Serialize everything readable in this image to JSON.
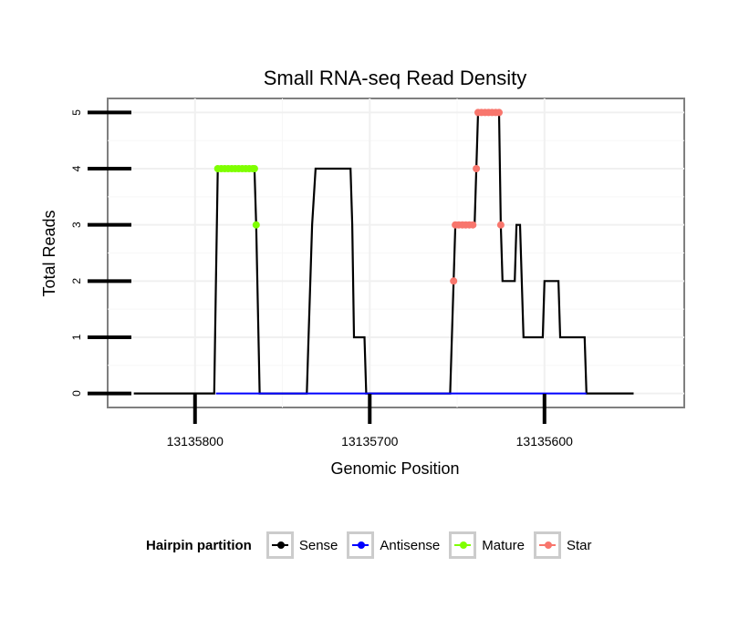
{
  "chart_data": {
    "type": "line",
    "title": "Small RNA-seq Read Density",
    "xlabel": "Genomic Position",
    "ylabel": "Total Reads",
    "xlim_reversed": [
      13135850,
      13135520
    ],
    "ylim": [
      -0.25,
      5.25
    ],
    "x_ticks": [
      13135800,
      13135700,
      13135600
    ],
    "x_tick_labels": [
      "13135800",
      "13135700",
      "13135600"
    ],
    "y_ticks": [
      0,
      1,
      2,
      3,
      4,
      5
    ],
    "y_tick_labels": [
      "0",
      "1",
      "2",
      "3",
      "4",
      "5"
    ],
    "grid": true,
    "legend": {
      "title": "Hairpin partition",
      "placement": "bottom",
      "entries": [
        {
          "name": "Sense",
          "color": "#000000"
        },
        {
          "name": "Antisense",
          "color": "#0000ff"
        },
        {
          "name": "Mature",
          "color": "#7fff00"
        },
        {
          "name": "Star",
          "color": "#f8766d"
        }
      ]
    },
    "series": [
      {
        "name": "Sense",
        "color": "#000000",
        "step": true,
        "points": [
          [
            13135835,
            0
          ],
          [
            13135789,
            0
          ],
          [
            13135788,
            2
          ],
          [
            13135787,
            4
          ],
          [
            13135766,
            4
          ],
          [
            13135765,
            3
          ],
          [
            13135763,
            0
          ],
          [
            13135736,
            0
          ],
          [
            13135735,
            1
          ],
          [
            13135733,
            3
          ],
          [
            13135731,
            4
          ],
          [
            13135711,
            4
          ],
          [
            13135710,
            3
          ],
          [
            13135709,
            1
          ],
          [
            13135703,
            1
          ],
          [
            13135702,
            0
          ],
          [
            13135654,
            0
          ],
          [
            13135653,
            1
          ],
          [
            13135651,
            3
          ],
          [
            13135640,
            3
          ],
          [
            13135639,
            4
          ],
          [
            13135638,
            5
          ],
          [
            13135626,
            5
          ],
          [
            13135625,
            3
          ],
          [
            13135624,
            2
          ],
          [
            13135617,
            2
          ],
          [
            13135616,
            3
          ],
          [
            13135614,
            3
          ],
          [
            13135612,
            1
          ],
          [
            13135601,
            1
          ],
          [
            13135600,
            2
          ],
          [
            13135592,
            2
          ],
          [
            13135591,
            1
          ],
          [
            13135577,
            1
          ],
          [
            13135576,
            0
          ],
          [
            13135549,
            0
          ]
        ]
      },
      {
        "name": "Antisense",
        "color": "#0000ff",
        "points": [
          [
            13135788,
            0
          ],
          [
            13135763,
            0
          ],
          [
            13135735,
            0
          ],
          [
            13135702,
            0
          ],
          [
            13135653,
            0
          ],
          [
            13135576,
            0
          ]
        ]
      },
      {
        "name": "Mature",
        "color": "#7fff00",
        "points": [
          [
            13135787,
            4
          ],
          [
            13135785,
            4
          ],
          [
            13135783,
            4
          ],
          [
            13135781,
            4
          ],
          [
            13135779,
            4
          ],
          [
            13135777,
            4
          ],
          [
            13135775,
            4
          ],
          [
            13135773,
            4
          ],
          [
            13135771,
            4
          ],
          [
            13135769,
            4
          ],
          [
            13135767,
            4
          ],
          [
            13135766,
            4
          ],
          [
            13135765,
            3
          ]
        ]
      },
      {
        "name": "Star",
        "color": "#f8766d",
        "points": [
          [
            13135652,
            2
          ],
          [
            13135651,
            3
          ],
          [
            13135649,
            3
          ],
          [
            13135647,
            3
          ],
          [
            13135645,
            3
          ],
          [
            13135643,
            3
          ],
          [
            13135641,
            3
          ],
          [
            13135639,
            4
          ],
          [
            13135638,
            5
          ],
          [
            13135636,
            5
          ],
          [
            13135634,
            5
          ],
          [
            13135632,
            5
          ],
          [
            13135630,
            5
          ],
          [
            13135628,
            5
          ],
          [
            13135626,
            5
          ],
          [
            13135625,
            3
          ]
        ]
      }
    ]
  }
}
